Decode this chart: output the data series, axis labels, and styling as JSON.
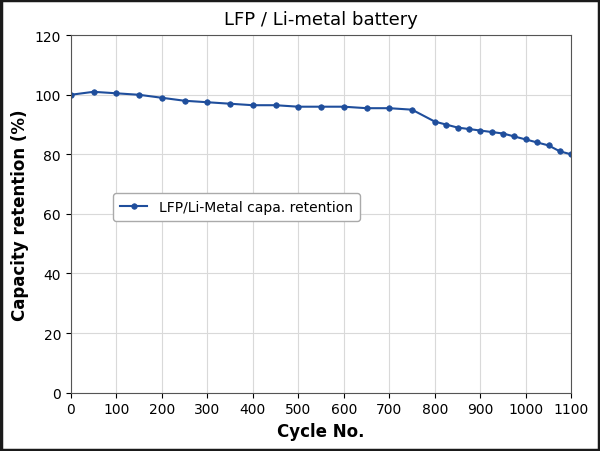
{
  "title": "LFP / Li-metal battery",
  "xlabel": "Cycle No.",
  "ylabel": "Capacity retention (%)",
  "legend_label": "LFP/Li-Metal capa. retention",
  "line_color": "#1f4e9c",
  "marker": "o",
  "marker_size": 4,
  "xlim": [
    0,
    1100
  ],
  "ylim": [
    0,
    120
  ],
  "xticks": [
    0,
    100,
    200,
    300,
    400,
    500,
    600,
    700,
    800,
    900,
    1000,
    1100
  ],
  "yticks": [
    0,
    20,
    40,
    60,
    80,
    100,
    120
  ],
  "x_data": [
    0,
    50,
    100,
    150,
    200,
    250,
    300,
    350,
    400,
    450,
    500,
    550,
    600,
    650,
    700,
    750,
    800,
    825,
    850,
    875,
    900,
    925,
    950,
    975,
    1000,
    1025,
    1050,
    1075,
    1100
  ],
  "y_data": [
    100,
    101,
    100.5,
    100,
    99,
    98,
    97.5,
    97,
    96.5,
    96.5,
    96,
    96,
    96,
    95.5,
    95.5,
    95,
    91,
    90,
    89,
    88.5,
    88,
    87.5,
    87,
    86,
    85,
    84,
    83,
    81,
    80
  ],
  "background_color": "#ffffff",
  "grid_color": "#d9d9d9",
  "title_fontsize": 13,
  "axis_label_fontsize": 12,
  "tick_fontsize": 10,
  "legend_fontsize": 10,
  "outer_bg": "#ffffff",
  "border_color": "#1a1a1a"
}
